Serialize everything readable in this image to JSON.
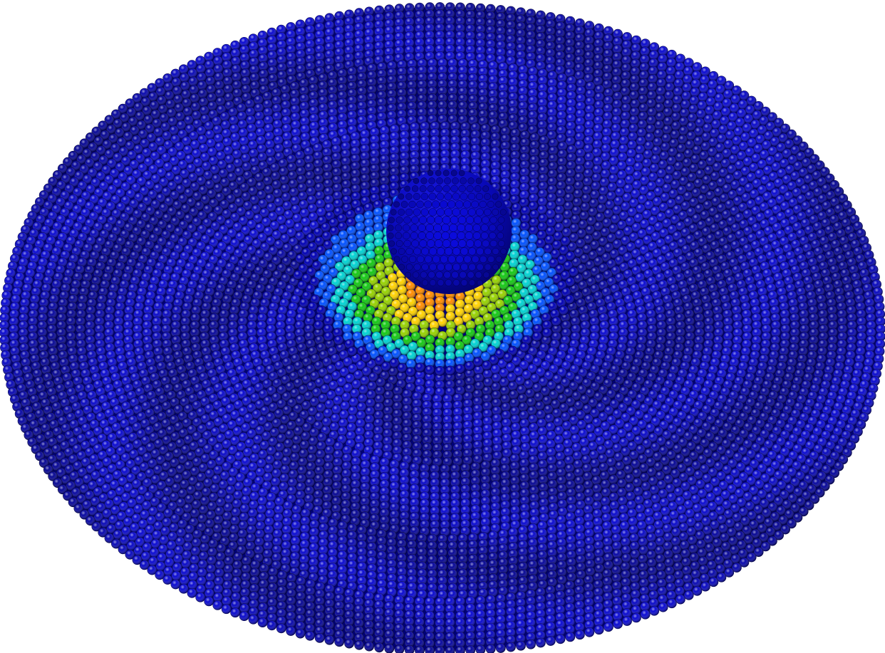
{
  "scene": {
    "background": "#ffffff",
    "subject": "particle-disk-impact",
    "particle_color_base": "#0a0ad2",
    "colormap": [
      "#0000b4",
      "#0050ff",
      "#00d2d2",
      "#14c814",
      "#96d200",
      "#ffd200",
      "#ff8c00",
      "#e61e00"
    ],
    "impactor_color": "#0a0ac8"
  }
}
